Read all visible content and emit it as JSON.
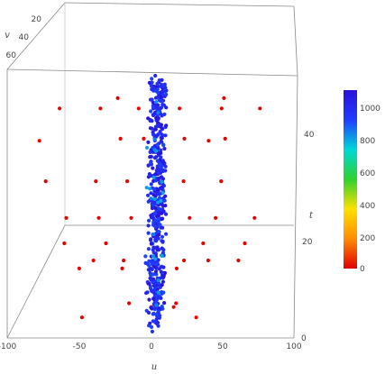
{
  "chart_data": {
    "type": "scatter3d",
    "axes": {
      "u": {
        "label": "u",
        "range": [
          -100,
          100
        ],
        "ticks": [
          "-100",
          "-50",
          "0",
          "50",
          "100"
        ]
      },
      "v": {
        "label": "v",
        "range": [
          0,
          70
        ],
        "ticks": [
          "20",
          "40",
          "60"
        ]
      },
      "t": {
        "label": "t",
        "range": [
          0,
          55
        ],
        "ticks": [
          "0",
          "20",
          "40"
        ]
      }
    },
    "colorbar": {
      "range": [
        0,
        1100
      ],
      "ticks": [
        "0",
        "200",
        "400",
        "600",
        "800",
        "1000"
      ],
      "colors": [
        "#e00000",
        "#ff8c00",
        "#ffe000",
        "#2ed12e",
        "#00d8d8",
        "#1f3cff",
        "#2a10d8"
      ]
    },
    "series": [
      {
        "points": [
          {
            "u": -35,
            "v": 0,
            "t": 52,
            "c": 5
          },
          {
            "u": 60,
            "v": 0,
            "t": 52,
            "c": 5
          },
          {
            "u": -72,
            "v": 35,
            "t": 48,
            "c": 5
          },
          {
            "u": -40,
            "v": 35,
            "t": 48,
            "c": 5
          },
          {
            "u": 55,
            "v": 35,
            "t": 48,
            "c": 5
          },
          {
            "u": 85,
            "v": 35,
            "t": 48,
            "c": 5
          },
          {
            "u": -10,
            "v": 35,
            "t": 48,
            "c": 5
          },
          {
            "u": 22,
            "v": 35,
            "t": 48,
            "c": 5
          },
          {
            "u": -30,
            "v": 10,
            "t": 42,
            "c": 5
          },
          {
            "u": 60,
            "v": 10,
            "t": 42,
            "c": 5
          },
          {
            "u": -10,
            "v": 10,
            "t": 42,
            "c": 5
          },
          {
            "u": 25,
            "v": 10,
            "t": 42,
            "c": 5
          },
          {
            "u": -85,
            "v": 30,
            "t": 32,
            "c": 5
          },
          {
            "u": -45,
            "v": 30,
            "t": 32,
            "c": 5
          },
          {
            "u": -20,
            "v": 30,
            "t": 32,
            "c": 5
          },
          {
            "u": 25,
            "v": 30,
            "t": 32,
            "c": 5
          },
          {
            "u": 55,
            "v": 30,
            "t": 32,
            "c": 5
          },
          {
            "u": -65,
            "v": 40,
            "t": 24,
            "c": 5
          },
          {
            "u": -40,
            "v": 40,
            "t": 24,
            "c": 5
          },
          {
            "u": -15,
            "v": 40,
            "t": 24,
            "c": 5
          },
          {
            "u": 30,
            "v": 40,
            "t": 24,
            "c": 5
          },
          {
            "u": 50,
            "v": 40,
            "t": 24,
            "c": 5
          },
          {
            "u": 80,
            "v": 40,
            "t": 24,
            "c": 5
          },
          {
            "u": -50,
            "v": 20,
            "t": 14,
            "c": 5
          },
          {
            "u": -25,
            "v": 20,
            "t": 14,
            "c": 5
          },
          {
            "u": 25,
            "v": 20,
            "t": 14,
            "c": 5
          },
          {
            "u": 45,
            "v": 20,
            "t": 14,
            "c": 5
          },
          {
            "u": 70,
            "v": 20,
            "t": 14,
            "c": 5
          },
          {
            "u": -55,
            "v": 40,
            "t": 13,
            "c": 5
          },
          {
            "u": -22,
            "v": 40,
            "t": 13,
            "c": 5
          },
          {
            "u": 20,
            "v": 40,
            "t": 13,
            "c": 5
          },
          {
            "u": -15,
            "v": 50,
            "t": 6,
            "c": 5
          },
          {
            "u": 20,
            "v": 50,
            "t": 6,
            "c": 5
          },
          {
            "u": -50,
            "v": 50,
            "t": 3,
            "c": 5
          },
          {
            "u": 35,
            "v": 50,
            "t": 3,
            "c": 5
          },
          {
            "u": -60,
            "v": 60,
            "t": 19,
            "c": 5
          },
          {
            "u": -30,
            "v": 60,
            "t": 19,
            "c": 5
          },
          {
            "u": 40,
            "v": 60,
            "t": 19,
            "c": 5
          },
          {
            "u": 70,
            "v": 60,
            "t": 19,
            "c": 5
          },
          {
            "u": -90,
            "v": 30,
            "t": 41,
            "c": 5
          },
          {
            "u": 45,
            "v": 30,
            "t": 41,
            "c": 5
          },
          {
            "u": -5,
            "v": 0,
            "t": 2,
            "c": 5
          },
          {
            "u": 15,
            "v": 0,
            "t": 2,
            "c": 5
          }
        ]
      }
    ]
  }
}
